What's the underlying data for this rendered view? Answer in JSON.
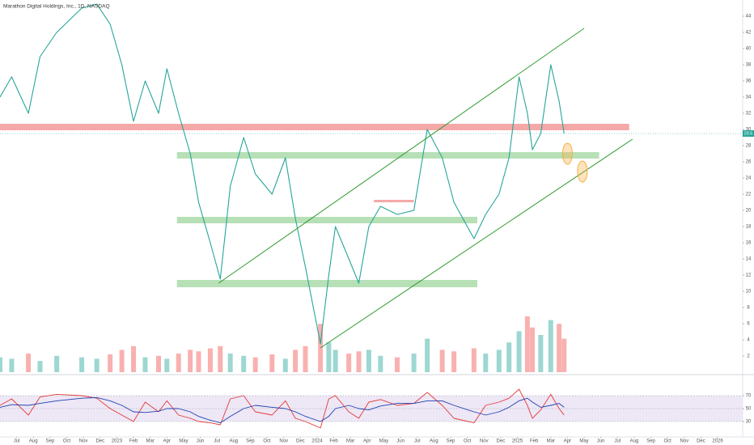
{
  "chart_data": [
    {
      "type": "line",
      "title": "Marathon Digital Holdings, Inc., 1D, NASDAQ",
      "x": [
        0,
        0.7,
        1.7,
        2.4,
        3.4,
        4.9,
        5.8,
        6.6,
        7.3,
        8,
        8.7,
        9.5,
        10,
        10.7,
        11.4,
        11.9,
        12.6,
        13.2,
        13.8,
        14.6,
        15.3,
        16.3,
        17.1,
        17.7,
        18.3,
        19.2,
        19.7,
        20.1,
        20.9,
        21.5,
        22.1,
        22.8,
        23.8,
        24.8,
        25.6,
        26.5,
        27.2,
        28.4,
        29.1,
        29.9,
        30.5,
        31.1,
        31.6,
        31.9,
        32.4,
        33,
        33.5,
        33.8
      ],
      "series": [
        {
          "type": "line",
          "color": "#26a69a",
          "values": [
            34,
            36.5,
            32,
            39,
            42,
            45,
            45.5,
            43,
            38,
            31,
            36,
            32,
            37.5,
            32,
            27,
            21,
            16,
            11.5,
            23,
            29,
            24.5,
            22,
            26.5,
            19,
            13,
            3.5,
            12,
            18,
            14,
            11,
            18,
            20.5,
            19.5,
            20,
            30,
            26.5,
            21,
            16.5,
            19.5,
            22,
            26.5,
            36.5,
            32,
            27.5,
            29.5,
            38,
            33.5,
            29.5
          ]
        },
        {
          "type": "bar",
          "axis": "y2",
          "values": [
            20,
            18,
            25,
            15,
            22,
            20,
            18,
            24,
            30,
            35,
            20,
            22,
            18,
            25,
            30,
            28,
            32,
            35,
            25,
            22,
            20,
            24,
            18,
            30,
            35,
            65,
            40,
            30,
            25,
            28,
            30,
            22,
            20,
            25,
            45,
            30,
            28,
            32,
            25,
            30,
            40,
            55,
            75,
            60,
            50,
            70,
            65,
            45
          ]
        }
      ],
      "up_color": "#26a69a",
      "down_color": "#ef5350",
      "xlim": [
        0,
        44.5
      ],
      "xticks": [
        {
          "value": 1,
          "label": "Jul"
        },
        {
          "value": 2,
          "label": "Aug"
        },
        {
          "value": 3,
          "label": "Sep"
        },
        {
          "value": 4,
          "label": "Oct"
        },
        {
          "value": 5,
          "label": "Nov"
        },
        {
          "value": 6,
          "label": "Dec"
        },
        {
          "value": 7,
          "label": "2023"
        },
        {
          "value": 8,
          "label": "Feb"
        },
        {
          "value": 9,
          "label": "Mar"
        },
        {
          "value": 10,
          "label": "Apr"
        },
        {
          "value": 11,
          "label": "May"
        },
        {
          "value": 12,
          "label": "Jun"
        },
        {
          "value": 13,
          "label": "Jul"
        },
        {
          "value": 14,
          "label": "Aug"
        },
        {
          "value": 15,
          "label": "Sep"
        },
        {
          "value": 16,
          "label": "Oct"
        },
        {
          "value": 17,
          "label": "Nov"
        },
        {
          "value": 18,
          "label": "Dec"
        },
        {
          "value": 19,
          "label": "2024"
        },
        {
          "value": 20,
          "label": "Feb"
        },
        {
          "value": 21,
          "label": "Mar"
        },
        {
          "value": 22,
          "label": "Apr"
        },
        {
          "value": 23,
          "label": "May"
        },
        {
          "value": 24,
          "label": "Jun"
        },
        {
          "value": 25,
          "label": "Jul"
        },
        {
          "value": 26,
          "label": "Aug"
        },
        {
          "value": 27,
          "label": "Sep"
        },
        {
          "value": 28,
          "label": "Oct"
        },
        {
          "value": 29,
          "label": "Nov"
        },
        {
          "value": 30,
          "label": "Dec"
        },
        {
          "value": 31,
          "label": "2025"
        },
        {
          "value": 32,
          "label": "Feb"
        },
        {
          "value": 33,
          "label": "Mar"
        },
        {
          "value": 34,
          "label": "Apr"
        },
        {
          "value": 35,
          "label": "May"
        },
        {
          "value": 36,
          "label": "Jun"
        },
        {
          "value": 37,
          "label": "Jul"
        },
        {
          "value": 38,
          "label": "Aug"
        },
        {
          "value": 39,
          "label": "Sep"
        },
        {
          "value": 40,
          "label": "Oct"
        },
        {
          "value": 41,
          "label": "Nov"
        },
        {
          "value": 42,
          "label": "Dec"
        },
        {
          "value": 43,
          "label": "2026"
        }
      ],
      "ylim": [
        0,
        46
      ],
      "yticks": [
        2,
        4,
        6,
        8,
        10,
        12,
        14,
        16,
        18,
        20,
        22,
        24,
        26,
        28,
        30,
        32,
        34,
        36,
        38,
        40,
        42,
        44
      ],
      "y2lim": [
        0,
        500
      ],
      "grid": false,
      "zones": [
        {
          "x": [
            0,
            37.7
          ],
          "y": [
            29.9,
            30.7
          ],
          "color": "#f28b8b"
        },
        {
          "x": [
            10.6,
            35.9
          ],
          "y": [
            26.4,
            27.2
          ],
          "color": "#9fd69f"
        },
        {
          "x": [
            10.6,
            28.6
          ],
          "y": [
            18.4,
            19.2
          ],
          "color": "#9fd69f"
        },
        {
          "x": [
            10.6,
            28.6
          ],
          "y": [
            10.5,
            11.4
          ],
          "color": "#9fd69f"
        },
        {
          "x": [
            22.4,
            24.8
          ],
          "y": [
            21.0,
            21.3
          ],
          "color": "#f28b8b"
        }
      ],
      "trend_lines": [
        {
          "x": [
            13.1,
            35
          ],
          "y": [
            11,
            42.5
          ],
          "color": "#2e9a2e"
        },
        {
          "x": [
            19.2,
            37.9
          ],
          "y": [
            3,
            28.8
          ],
          "color": "#2e9a2e"
        }
      ],
      "markers": [
        {
          "x": 34,
          "y": 27,
          "color": "#f5b041"
        },
        {
          "x": 34.9,
          "y": 24.8,
          "color": "#f5b041"
        }
      ]
    },
    {
      "type": "line",
      "x": [
        0,
        0.7,
        1.7,
        2.4,
        3.4,
        4.9,
        5.8,
        6.6,
        7.3,
        8,
        8.7,
        9.5,
        10,
        10.7,
        11.4,
        11.9,
        12.6,
        13.2,
        13.8,
        14.6,
        15.3,
        16.3,
        17.1,
        17.7,
        18.3,
        19.2,
        19.7,
        20.1,
        20.9,
        21.5,
        22.1,
        22.8,
        23.8,
        24.8,
        25.6,
        26.5,
        27.2,
        28.4,
        29.1,
        29.9,
        30.5,
        31.1,
        31.6,
        31.9,
        32.4,
        33,
        33.5,
        33.8
      ],
      "series": [
        {
          "type": "line",
          "color": "#e53935",
          "values": [
            55,
            65,
            40,
            68,
            72,
            70,
            66,
            50,
            40,
            30,
            60,
            45,
            62,
            40,
            35,
            30,
            28,
            25,
            65,
            70,
            45,
            40,
            62,
            35,
            30,
            20,
            65,
            70,
            45,
            35,
            60,
            64,
            55,
            58,
            75,
            55,
            35,
            28,
            55,
            60,
            66,
            80,
            55,
            35,
            48,
            72,
            50,
            40
          ]
        },
        {
          "type": "line",
          "color": "#1e40af",
          "values": [
            52,
            56,
            55,
            58,
            62,
            66,
            67,
            62,
            55,
            45,
            44,
            46,
            50,
            50,
            45,
            38,
            32,
            28,
            38,
            50,
            55,
            52,
            50,
            45,
            38,
            30,
            38,
            50,
            55,
            50,
            48,
            54,
            58,
            58,
            62,
            62,
            55,
            45,
            40,
            45,
            52,
            62,
            66,
            60,
            52,
            55,
            58,
            52
          ]
        }
      ],
      "xlim": [
        0,
        44.5
      ],
      "ylim": [
        0,
        100
      ],
      "yticks": [
        30,
        50,
        70
      ],
      "band_color": "#ede7f6"
    }
  ]
}
